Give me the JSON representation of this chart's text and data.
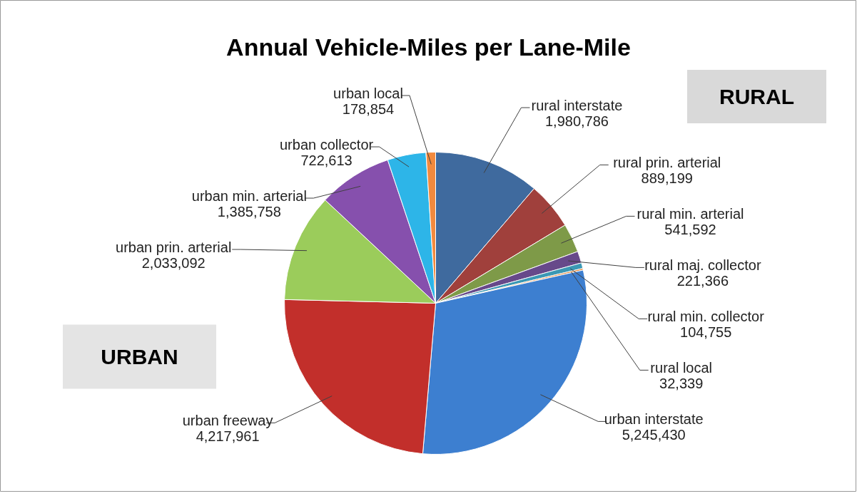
{
  "chart_data": {
    "type": "pie",
    "title": "Annual Vehicle-Miles per Lane-Mile",
    "categories": [
      "rural interstate",
      "rural prin. arterial",
      "rural min. arterial",
      "rural maj. collector",
      "rural min. collector",
      "rural local",
      "urban interstate",
      "urban freeway",
      "urban prin. arterial",
      "urban min. arterial",
      "urban collector",
      "urban local"
    ],
    "values": [
      1980786,
      889199,
      541592,
      221366,
      104755,
      32339,
      5245430,
      4217961,
      2033092,
      1385758,
      722613,
      178854
    ],
    "colors": [
      "#3f6a9e",
      "#a0403c",
      "#7e9a48",
      "#67498a",
      "#3b98b4",
      "#e0863a",
      "#3d7fd0",
      "#c22f2b",
      "#9bcc5b",
      "#8650ad",
      "#2db5e8",
      "#f28a3e"
    ],
    "value_labels": [
      "1,980,786",
      "889,199",
      "541,592",
      "221,366",
      "104,755",
      "32,339",
      "5,245,430",
      "4,217,961",
      "2,033,092",
      "1,385,758",
      "722,613",
      "178,854"
    ],
    "annotations": [
      "RURAL",
      "URBAN"
    ]
  }
}
